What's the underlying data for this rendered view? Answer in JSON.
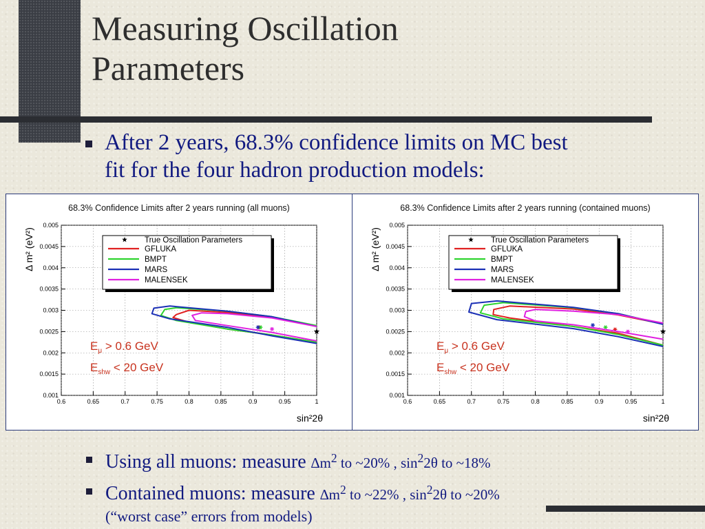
{
  "slide": {
    "title_line1": "Measuring Oscillation",
    "title_line2": "Parameters",
    "bullet1_line1": "After 2 years, 68.3% confidence limits on MC best",
    "bullet1_line2": "fit for the four hadron production models:",
    "bullet2_text": "Using all muons: measure",
    "bullet2_rest": "to ~20% , sin",
    "bullet2_end": "2θ to ~18%",
    "bullet3_text": "Contained muons: measure",
    "bullet3_rest": "to ~22% , sin",
    "bullet3_end": "2θ to ~20%",
    "delta_m": "∆m",
    "sup2": "2",
    "sub_note": "(“worst case” errors from models)"
  },
  "colors": {
    "accent_text": "#111a80",
    "GFLUKA": "#e02020",
    "BMPT": "#2ed42e",
    "MARS": "#1a2fb5",
    "MALENSEK": "#e020e0",
    "annotation": "#c8321e"
  },
  "chart_data": [
    {
      "type": "line",
      "title": "68.3% Confidence Limits after 2 years running (all muons)",
      "xlabel": "sin²2θ",
      "ylabel": "Δ m² (eV²)",
      "xlim": [
        0.6,
        1.0
      ],
      "ylim": [
        0.001,
        0.005
      ],
      "xticks": [
        "0.6",
        "0.65",
        "0.7",
        "0.75",
        "0.8",
        "0.85",
        "0.9",
        "0.95",
        "1"
      ],
      "yticks": [
        "0.001",
        "0.0015",
        "0.002",
        "0.0025",
        "0.003",
        "0.0035",
        "0.004",
        "0.0045",
        "0.005"
      ],
      "grid": true,
      "legend_position": "top-left",
      "annotation_line1": "E",
      "annotation_sub1": "μ",
      "annotation_rest1": " > 0.6 GeV",
      "annotation_line2": "E",
      "annotation_sub2": "shw",
      "annotation_rest2": " < 20 GeV",
      "true_point": {
        "name": "True Oscillation Parameters",
        "x": 1.0,
        "y": 0.0025
      },
      "series": [
        {
          "name": "GFLUKA",
          "best_fit": {
            "x": 0.91,
            "y": 0.0026
          },
          "contour": [
            [
              1.0,
              0.00263
            ],
            [
              0.93,
              0.00283
            ],
            [
              0.86,
              0.00295
            ],
            [
              0.8,
              0.003
            ],
            [
              0.78,
              0.0029
            ],
            [
              0.775,
              0.00283
            ],
            [
              0.8,
              0.00272
            ],
            [
              0.86,
              0.00256
            ],
            [
              0.93,
              0.00242
            ],
            [
              1.0,
              0.00225
            ]
          ]
        },
        {
          "name": "BMPT",
          "best_fit": {
            "x": 0.912,
            "y": 0.0026
          },
          "contour": [
            [
              1.0,
              0.00264
            ],
            [
              0.93,
              0.00285
            ],
            [
              0.86,
              0.00298
            ],
            [
              0.78,
              0.00306
            ],
            [
              0.762,
              0.00302
            ],
            [
              0.756,
              0.00288
            ],
            [
              0.78,
              0.00276
            ],
            [
              0.86,
              0.00256
            ],
            [
              0.93,
              0.00242
            ],
            [
              1.0,
              0.00225
            ]
          ]
        },
        {
          "name": "MARS",
          "best_fit": {
            "x": 0.908,
            "y": 0.0026
          },
          "contour": [
            [
              1.0,
              0.00262
            ],
            [
              0.93,
              0.00285
            ],
            [
              0.86,
              0.00298
            ],
            [
              0.77,
              0.0031
            ],
            [
              0.745,
              0.00305
            ],
            [
              0.742,
              0.00292
            ],
            [
              0.77,
              0.0028
            ],
            [
              0.86,
              0.0026
            ],
            [
              0.93,
              0.0024
            ],
            [
              1.0,
              0.00222
            ]
          ]
        },
        {
          "name": "MALENSEK",
          "best_fit": {
            "x": 0.93,
            "y": 0.00256
          },
          "contour": [
            [
              1.0,
              0.00262
            ],
            [
              0.93,
              0.00282
            ],
            [
              0.86,
              0.00292
            ],
            [
              0.82,
              0.00294
            ],
            [
              0.805,
              0.00288
            ],
            [
              0.81,
              0.00276
            ],
            [
              0.86,
              0.00264
            ],
            [
              0.93,
              0.00248
            ],
            [
              1.0,
              0.00228
            ]
          ]
        }
      ]
    },
    {
      "type": "line",
      "title": "68.3% Confidence Limits after 2 years running (contained muons)",
      "xlabel": "sin²2θ",
      "ylabel": "Δ m² (eV²)",
      "xlim": [
        0.6,
        1.0
      ],
      "ylim": [
        0.001,
        0.005
      ],
      "xticks": [
        "0.6",
        "0.65",
        "0.7",
        "0.75",
        "0.8",
        "0.85",
        "0.9",
        "0.95",
        "1"
      ],
      "yticks": [
        "0.001",
        "0.0015",
        "0.002",
        "0.0025",
        "0.003",
        "0.0035",
        "0.004",
        "0.0045",
        "0.005"
      ],
      "grid": true,
      "legend_position": "top-left",
      "annotation_line1": "E",
      "annotation_sub1": "μ",
      "annotation_rest1": " > 0.6 GeV",
      "annotation_line2": "E",
      "annotation_sub2": "shw",
      "annotation_rest2": " < 20 GeV",
      "true_point": {
        "name": "True Oscillation Parameters",
        "x": 1.0,
        "y": 0.0025
      },
      "series": [
        {
          "name": "GFLUKA",
          "best_fit": {
            "x": 0.925,
            "y": 0.00255
          },
          "contour": [
            [
              1.0,
              0.00268
            ],
            [
              0.93,
              0.00289
            ],
            [
              0.86,
              0.00303
            ],
            [
              0.76,
              0.0031
            ],
            [
              0.735,
              0.00302
            ],
            [
              0.734,
              0.0029
            ],
            [
              0.76,
              0.00282
            ],
            [
              0.86,
              0.00262
            ],
            [
              0.93,
              0.00246
            ],
            [
              1.0,
              0.00218
            ]
          ]
        },
        {
          "name": "BMPT",
          "best_fit": {
            "x": 0.91,
            "y": 0.0026
          },
          "contour": [
            [
              1.0,
              0.00268
            ],
            [
              0.93,
              0.00292
            ],
            [
              0.86,
              0.00306
            ],
            [
              0.75,
              0.00318
            ],
            [
              0.72,
              0.00312
            ],
            [
              0.714,
              0.00294
            ],
            [
              0.75,
              0.0028
            ],
            [
              0.86,
              0.00262
            ],
            [
              0.93,
              0.00243
            ],
            [
              1.0,
              0.00218
            ]
          ]
        },
        {
          "name": "MARS",
          "best_fit": {
            "x": 0.89,
            "y": 0.00265
          },
          "contour": [
            [
              1.0,
              0.00267
            ],
            [
              0.93,
              0.00292
            ],
            [
              0.86,
              0.00307
            ],
            [
              0.74,
              0.00322
            ],
            [
              0.7,
              0.00316
            ],
            [
              0.696,
              0.00296
            ],
            [
              0.74,
              0.00278
            ],
            [
              0.86,
              0.00257
            ],
            [
              0.93,
              0.00238
            ],
            [
              1.0,
              0.00215
            ]
          ]
        },
        {
          "name": "MALENSEK",
          "best_fit": {
            "x": 0.945,
            "y": 0.0025
          },
          "contour": [
            [
              1.0,
              0.0027
            ],
            [
              0.93,
              0.0029
            ],
            [
              0.86,
              0.00298
            ],
            [
              0.8,
              0.00302
            ],
            [
              0.785,
              0.00297
            ],
            [
              0.783,
              0.00285
            ],
            [
              0.8,
              0.00275
            ],
            [
              0.86,
              0.00266
            ],
            [
              0.93,
              0.0025
            ],
            [
              1.0,
              0.00232
            ]
          ]
        }
      ]
    }
  ]
}
